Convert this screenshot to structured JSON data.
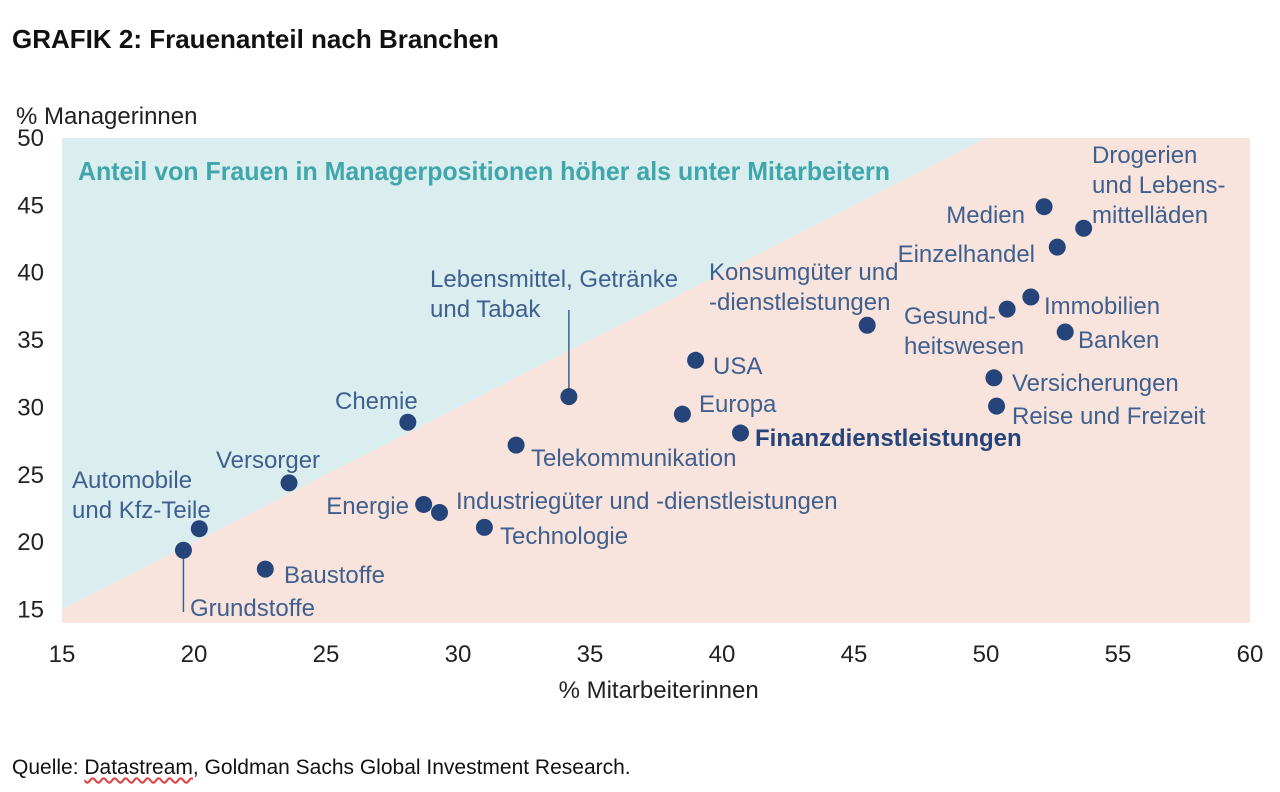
{
  "title": "GRAFIK 2: Frauenanteil nach Branchen",
  "source": {
    "prefix": "Quelle: ",
    "underlined": "Datastream",
    "suffix": ", Goldman Sachs Global Investment Research."
  },
  "colors": {
    "upper_region": "#daeef0",
    "lower_region": "#f8e4dc",
    "point": "#25457a",
    "label": "#3f5f8e",
    "region_label": "#3fa6ab",
    "axis_text": "#222222"
  },
  "chart_data": {
    "type": "scatter",
    "title": "GRAFIK 2: Frauenanteil nach Branchen",
    "xlabel": "% Mitarbeiterinnen",
    "ylabel": "% Managerinnen",
    "xlim": [
      15,
      60
    ],
    "ylim": [
      14,
      50
    ],
    "x_ticks": [
      15,
      20,
      25,
      30,
      35,
      40,
      45,
      50,
      55,
      60
    ],
    "y_ticks": [
      15,
      20,
      25,
      30,
      35,
      40,
      45,
      50
    ],
    "region_label": "Anteil von Frauen in Managerpositionen höher als unter Mitarbeitern",
    "reference_line": "y = x",
    "grid": false,
    "legend": "none",
    "points": [
      {
        "label": "Automobile und Kfz-Teile",
        "x": 20.2,
        "y": 21.0
      },
      {
        "label": "Grundstoffe",
        "x": 19.6,
        "y": 19.4
      },
      {
        "label": "Baustoffe",
        "x": 22.7,
        "y": 18.0
      },
      {
        "label": "Versorger",
        "x": 23.6,
        "y": 24.4
      },
      {
        "label": "Chemie",
        "x": 28.1,
        "y": 28.9
      },
      {
        "label": "Energie",
        "x": 28.7,
        "y": 22.8
      },
      {
        "label": "Industriegüter und -dienstleistungen",
        "x": 29.3,
        "y": 22.2
      },
      {
        "label": "Technologie",
        "x": 31.0,
        "y": 21.1
      },
      {
        "label": "Telekommunikation",
        "x": 32.2,
        "y": 27.2
      },
      {
        "label": "Lebensmittel, Getränke und Tabak",
        "x": 34.2,
        "y": 30.8
      },
      {
        "label": "Europa",
        "x": 38.5,
        "y": 29.5
      },
      {
        "label": "USA",
        "x": 39.0,
        "y": 33.5
      },
      {
        "label": "Finanzdienstleistungen",
        "x": 40.7,
        "y": 28.1
      },
      {
        "label": "Konsumgüter und -dienstleistungen",
        "x": 45.5,
        "y": 36.1
      },
      {
        "label": "Versicherungen",
        "x": 50.3,
        "y": 32.2
      },
      {
        "label": "Reise und Freizeit",
        "x": 50.4,
        "y": 30.1
      },
      {
        "label": "Gesundheitswesen",
        "x": 50.8,
        "y": 37.3
      },
      {
        "label": "Immobilien",
        "x": 51.7,
        "y": 38.2
      },
      {
        "label": "Medien",
        "x": 52.2,
        "y": 44.9
      },
      {
        "label": "Einzelhandel",
        "x": 52.7,
        "y": 41.9
      },
      {
        "label": "Banken",
        "x": 53.0,
        "y": 35.6
      },
      {
        "label": "Drogerien und Lebensmittelläden",
        "x": 53.7,
        "y": 43.3
      }
    ]
  }
}
